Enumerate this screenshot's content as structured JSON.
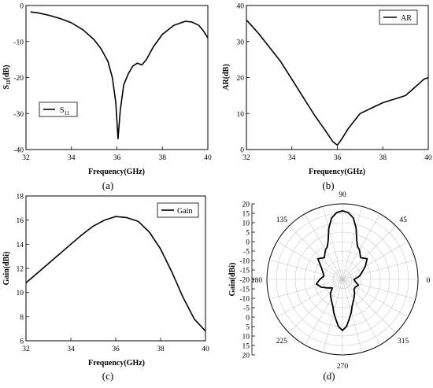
{
  "chart_data": [
    {
      "id": "a",
      "type": "line",
      "panel_label": "(a)",
      "xlabel": "Frequency(GHz)",
      "ylabel": "S11(dB)",
      "ylabel_main": "S",
      "ylabel_sub": "11",
      "ylabel_unit": "(dB)",
      "xlim": [
        32,
        40
      ],
      "ylim": [
        -40,
        0
      ],
      "xticks": [
        32,
        34,
        36,
        38,
        40
      ],
      "yticks": [
        0,
        -10,
        -20,
        -30,
        -40
      ],
      "legend": {
        "placement": "lower-left",
        "main": "S",
        "sub": "11"
      },
      "series": [
        {
          "name": "S11",
          "x": [
            32.2,
            32.5,
            33.0,
            33.5,
            34.0,
            34.5,
            35.0,
            35.3,
            35.6,
            35.8,
            35.95,
            36.05,
            36.15,
            36.3,
            36.5,
            36.7,
            36.9,
            37.1,
            37.3,
            37.6,
            38.0,
            38.5,
            39.0,
            39.3,
            39.6,
            39.8,
            40.0
          ],
          "y": [
            -1.8,
            -2.0,
            -2.7,
            -3.6,
            -4.8,
            -6.7,
            -9.5,
            -12.0,
            -15.5,
            -20.0,
            -27.0,
            -37.0,
            -29.0,
            -22.0,
            -19.0,
            -16.8,
            -16.0,
            -16.5,
            -15.0,
            -11.5,
            -8.0,
            -5.5,
            -4.4,
            -4.6,
            -5.5,
            -7.0,
            -9.0
          ]
        }
      ]
    },
    {
      "id": "b",
      "type": "line",
      "panel_label": "(b)",
      "xlabel": "Frequency(GHz)",
      "ylabel": "AR(dB)",
      "xlim": [
        32,
        40
      ],
      "ylim": [
        0,
        40
      ],
      "xticks": [
        32,
        34,
        36,
        38,
        40
      ],
      "yticks": [
        0,
        10,
        20,
        30,
        40
      ],
      "legend": {
        "placement": "top-right",
        "label": "AR"
      },
      "series": [
        {
          "name": "AR",
          "x": [
            32.0,
            32.5,
            33.0,
            33.5,
            34.0,
            34.5,
            35.0,
            35.5,
            35.8,
            36.0,
            36.2,
            36.5,
            37.0,
            37.5,
            38.0,
            38.5,
            39.0,
            39.5,
            39.8,
            40.0
          ],
          "y": [
            36.0,
            32.5,
            28.5,
            24.5,
            19.5,
            14.5,
            9.5,
            5.0,
            2.2,
            1.2,
            3.0,
            6.0,
            10.0,
            11.5,
            13.0,
            14.0,
            15.0,
            17.8,
            19.5,
            20.0
          ]
        }
      ]
    },
    {
      "id": "c",
      "type": "line",
      "panel_label": "(c)",
      "xlabel": "Frequency(GHz)",
      "ylabel": "Gain(dBi)",
      "xlim": [
        32,
        40
      ],
      "ylim": [
        6,
        18
      ],
      "xticks": [
        32,
        34,
        36,
        38,
        40
      ],
      "yticks": [
        6,
        8,
        10,
        12,
        14,
        16,
        18
      ],
      "legend": {
        "placement": "top-right",
        "label": "Gain"
      },
      "series": [
        {
          "name": "Gain",
          "x": [
            32.0,
            32.5,
            33.0,
            33.5,
            34.0,
            34.5,
            35.0,
            35.5,
            36.0,
            36.5,
            37.0,
            37.5,
            38.0,
            38.5,
            39.0,
            39.5,
            40.0
          ],
          "y": [
            10.8,
            11.6,
            12.4,
            13.2,
            14.0,
            14.8,
            15.5,
            16.0,
            16.3,
            16.2,
            15.9,
            15.0,
            13.6,
            11.7,
            9.6,
            7.8,
            6.8
          ]
        }
      ]
    },
    {
      "id": "d",
      "type": "polar",
      "panel_label": "(d)",
      "rlabel": "Gain(dBi)",
      "rlim": [
        -20,
        20
      ],
      "rticks_upper": [
        20,
        15,
        10,
        5,
        0,
        -5,
        -10,
        -15,
        -20
      ],
      "rticks_lower": [
        -15,
        -10,
        -5,
        0,
        5,
        10,
        15,
        20
      ],
      "angle_labels": [
        "90",
        "45",
        "0",
        "315",
        "270",
        "225",
        "180",
        "135"
      ],
      "angle_values": [
        90,
        45,
        0,
        315,
        270,
        225,
        180,
        135
      ],
      "series": [
        {
          "name": "Gain",
          "theta": [
            0,
            10,
            20,
            30,
            40,
            50,
            60,
            65,
            70,
            75,
            80,
            85,
            90,
            95,
            100,
            105,
            110,
            115,
            120,
            130,
            140,
            150,
            160,
            170,
            180,
            190,
            200,
            210,
            220,
            230,
            240,
            250,
            255,
            260,
            265,
            270,
            275,
            280,
            285,
            290,
            300,
            310,
            320,
            330,
            340,
            350,
            360
          ],
          "r": [
            -14,
            -11,
            -9,
            -6,
            -3,
            -5,
            -2,
            -1,
            2,
            8,
            13,
            15.5,
            16.3,
            15.5,
            13,
            8,
            2,
            -1,
            -2,
            -5,
            -3,
            -7,
            -9,
            -10,
            -8,
            -6,
            -8,
            -11,
            -13,
            -10,
            -8,
            -5,
            -2,
            1,
            5,
            7,
            5,
            1,
            -2,
            -5,
            -8,
            -10,
            -12,
            -12,
            -11,
            -13,
            -14
          ]
        }
      ]
    }
  ]
}
